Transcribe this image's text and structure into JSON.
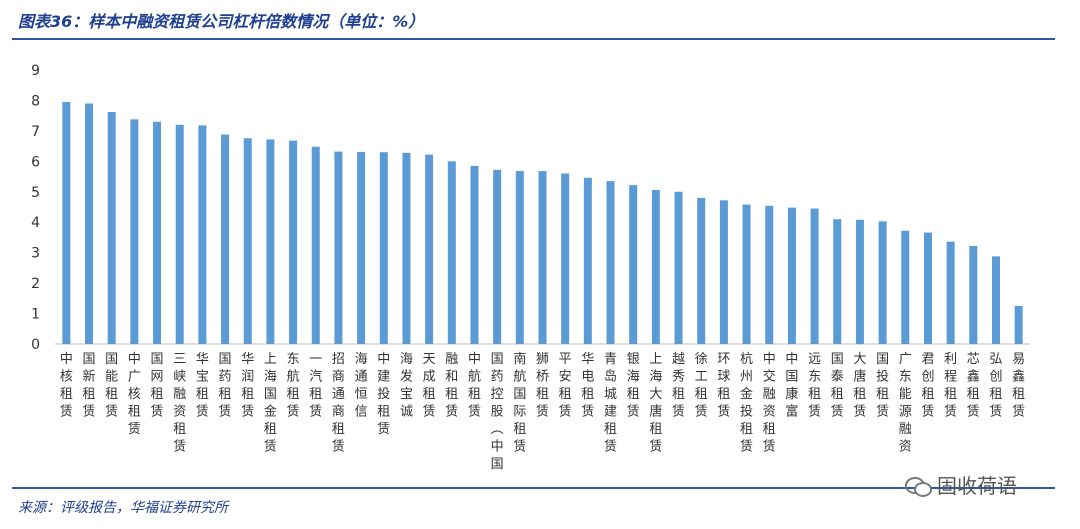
{
  "header": {
    "title": "图表36：样本中融资租赁公司杠杆倍数情况（单位：%）"
  },
  "footer": {
    "source": "来源：评级报告，华福证券研究所",
    "watermark": "固收荷语",
    "watermark_icon": "wechat-icon"
  },
  "colors": {
    "bar": "#5b9bd5",
    "rule": "#2f55a4",
    "title": "#1f3f8f"
  },
  "chart_data": {
    "type": "bar",
    "title": "",
    "xlabel": "",
    "ylabel": "",
    "ylim": [
      0,
      9
    ],
    "yticks": [
      0,
      1,
      2,
      3,
      4,
      5,
      6,
      7,
      8,
      9
    ],
    "grid": false,
    "legend": "none",
    "categories": [
      "中核租赁",
      "国新租赁",
      "国能租赁",
      "中广核租赁",
      "国网租赁",
      "三峡融资租赁",
      "华宝租赁",
      "国药租赁",
      "华润租赁",
      "上海国金租赁",
      "东航租赁",
      "一汽租赁",
      "招商通商租赁",
      "海通恒信",
      "中建投租赁",
      "海发宝诚",
      "天成租赁",
      "融和租赁",
      "中航租赁",
      "国药控股(中国)",
      "南航国际租赁",
      "狮桥租赁",
      "平安租赁",
      "华电租赁",
      "青岛城建租赁",
      "银海租赁",
      "上海大唐租赁",
      "越秀租赁",
      "徐工租赁",
      "环球租赁",
      "杭州金投租赁",
      "中交融资租赁",
      "中国康富",
      "远东租赁",
      "国泰租赁",
      "大唐租赁",
      "国投租赁",
      "广东能源融资",
      "君创租赁",
      "利程租赁",
      "芯鑫租赁",
      "弘创租赁",
      "易鑫租赁"
    ],
    "values": [
      7.95,
      7.9,
      7.62,
      7.38,
      7.3,
      7.2,
      7.18,
      6.88,
      6.76,
      6.72,
      6.68,
      6.48,
      6.32,
      6.31,
      6.3,
      6.28,
      6.22,
      6.0,
      5.85,
      5.72,
      5.68,
      5.68,
      5.6,
      5.46,
      5.35,
      5.22,
      5.06,
      5.0,
      4.8,
      4.72,
      4.58,
      4.54,
      4.48,
      4.45,
      4.1,
      4.08,
      4.03,
      3.72,
      3.66,
      3.36,
      3.22,
      2.88,
      1.25
    ]
  }
}
